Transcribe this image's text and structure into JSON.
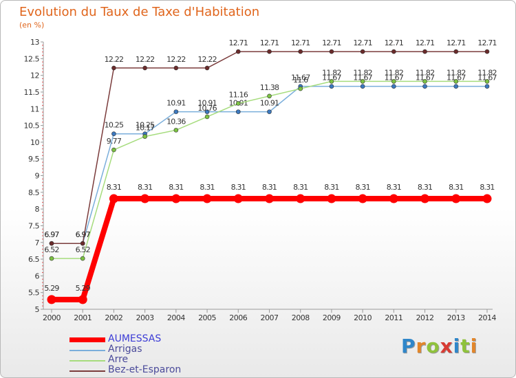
{
  "header": {
    "title": "Evolution du Taux de Taxe d'Habitation",
    "unit": "(en %)"
  },
  "brand": {
    "name": "Proxiti",
    "letters": [
      {
        "ch": "P",
        "color": "#2f86c9"
      },
      {
        "ch": "r",
        "color": "#e2862a"
      },
      {
        "ch": "o",
        "color": "#8fc23c"
      },
      {
        "ch": "x",
        "color": "#d83b33"
      },
      {
        "ch": "i",
        "color": "#2f86c9"
      },
      {
        "ch": "t",
        "color": "#8fc23c"
      },
      {
        "ch": "i",
        "color": "#e2862a"
      }
    ]
  },
  "chart_data": {
    "type": "line",
    "title": "Evolution du Taux de Taxe d'Habitation",
    "ylabel": "(en %)",
    "xlabel": "",
    "categories": [
      "2000",
      "2001",
      "2002",
      "2003",
      "2004",
      "2005",
      "2006",
      "2007",
      "2008",
      "2009",
      "2010",
      "2011",
      "2012",
      "2013",
      "2014"
    ],
    "ylim": [
      5,
      13
    ],
    "yticks": [
      "5",
      "5.5",
      "6",
      "6.5",
      "7",
      "7.5",
      "8",
      "8.5",
      "9",
      "9.5",
      "10",
      "10.5",
      "11",
      "11.5",
      "12",
      "12.5",
      "13"
    ],
    "legend_position": "bottom-left",
    "grid": false,
    "series": [
      {
        "name": "AUMESSAS",
        "color": "#ff0000",
        "highlight": true,
        "values": [
          5.29,
          5.29,
          8.31,
          8.31,
          8.31,
          8.31,
          8.31,
          8.31,
          8.31,
          8.31,
          8.31,
          8.31,
          8.31,
          8.31,
          8.31
        ],
        "labels": [
          "5.29",
          "5.29",
          "8.31",
          "8.31",
          "8.31",
          "8.31",
          "8.31",
          "8.31",
          "8.31",
          "8.31",
          "8.31",
          "8.31",
          "8.31",
          "8.31",
          "8.31"
        ]
      },
      {
        "name": "Arrigas",
        "color": "#7aaedb",
        "marker": "#3b78bf",
        "highlight": false,
        "values": [
          6.97,
          6.97,
          10.25,
          10.25,
          10.91,
          10.91,
          10.91,
          10.91,
          11.67,
          11.67,
          11.67,
          11.67,
          11.67,
          11.67,
          11.67
        ],
        "labels": [
          "6.97",
          "6.97",
          "10.25",
          "10.25",
          "10.91",
          "10.91",
          "10.91",
          "10.91",
          "11.67",
          "11.67",
          "11.67",
          "11.67",
          "11.67",
          "11.67",
          "11.67"
        ]
      },
      {
        "name": "Arre",
        "color": "#a6dc7d",
        "marker": "#7cc242",
        "highlight": false,
        "values": [
          6.52,
          6.52,
          9.77,
          10.17,
          10.36,
          10.76,
          11.16,
          11.38,
          11.6,
          11.82,
          11.82,
          11.82,
          11.82,
          11.82,
          11.82
        ],
        "labels": [
          "6.52",
          "6.52",
          "9.77",
          "10.17",
          "10.36",
          "10.76",
          "11.16",
          "11.38",
          "11.6",
          "11.82",
          "11.82",
          "11.82",
          "11.82",
          "11.82",
          "11.82"
        ]
      },
      {
        "name": "Bez-et-Esparon",
        "color": "#7a3b3b",
        "marker": "#6b2b2b",
        "highlight": false,
        "values": [
          6.97,
          6.97,
          12.22,
          12.22,
          12.22,
          12.22,
          12.71,
          12.71,
          12.71,
          12.71,
          12.71,
          12.71,
          12.71,
          12.71,
          12.71
        ],
        "labels": [
          "6.97",
          "6.97",
          "12.22",
          "12.22",
          "12.22",
          "12.22",
          "12.71",
          "12.71",
          "12.71",
          "12.71",
          "12.71",
          "12.71",
          "12.71",
          "12.71",
          "12.71"
        ]
      }
    ]
  }
}
